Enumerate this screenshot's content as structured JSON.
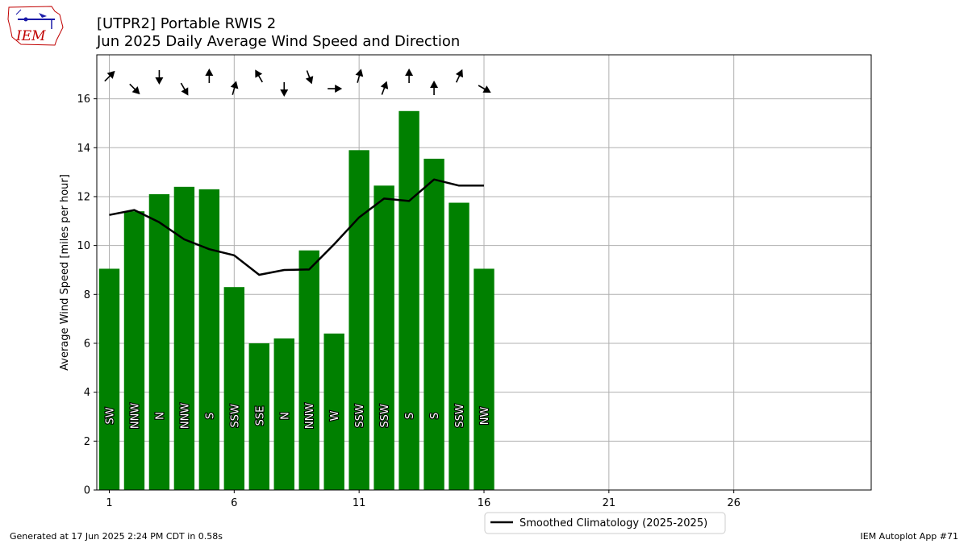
{
  "logo": {
    "text": "IEM"
  },
  "chart_data": {
    "type": "bar",
    "title": "[UTPR2] Portable RWIS 2",
    "subtitle": "Jun 2025 Daily Average Wind Speed and Direction",
    "ylabel": "Average Wind Speed [miles per hour]",
    "xlabel": "",
    "xlim": [
      0.5,
      31.5
    ],
    "ylim": [
      0,
      17.8
    ],
    "xticks": [
      1,
      6,
      11,
      16,
      21,
      26
    ],
    "yticks": [
      0,
      2,
      4,
      6,
      8,
      10,
      12,
      14,
      16
    ],
    "grid": true,
    "bar_color": "#008000",
    "days": [
      1,
      2,
      3,
      4,
      5,
      6,
      7,
      8,
      9,
      10,
      11,
      12,
      13,
      14,
      15,
      16
    ],
    "values": [
      9.05,
      11.4,
      12.1,
      12.4,
      12.3,
      8.3,
      6.0,
      6.2,
      9.8,
      6.4,
      13.9,
      12.45,
      15.5,
      13.55,
      11.75,
      9.05
    ],
    "directions": [
      "SW",
      "NNW",
      "N",
      "NNW",
      "S",
      "SSW",
      "SSE",
      "N",
      "NNW",
      "W",
      "SSW",
      "SSW",
      "S",
      "S",
      "SSW",
      "NW"
    ],
    "arrow_headings_deg": [
      45,
      135,
      180,
      150,
      0,
      15,
      330,
      180,
      160,
      90,
      15,
      20,
      0,
      0,
      25,
      120
    ],
    "series": [
      {
        "name": "Smoothed Climatology (2025-2025)",
        "type": "line",
        "color": "#000000",
        "x": [
          1,
          2,
          3,
          4,
          5,
          6,
          7,
          8,
          9,
          10,
          11,
          12,
          13,
          14,
          15,
          16
        ],
        "values": [
          11.25,
          11.45,
          10.95,
          10.25,
          9.85,
          9.6,
          8.8,
          9.0,
          9.02,
          10.05,
          11.15,
          11.92,
          11.82,
          12.7,
          12.45,
          12.45
        ]
      }
    ],
    "legend_position": "bottom-center"
  },
  "footer": {
    "generated": "Generated at 17 Jun 2025 2:24 PM CDT in 0.58s",
    "app": "IEM Autoplot App #71"
  }
}
